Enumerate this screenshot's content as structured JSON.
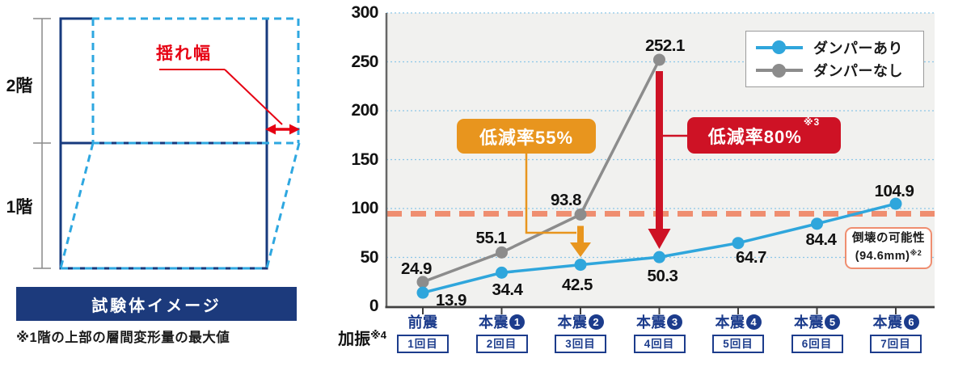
{
  "diagram": {
    "floor2_label": "2階",
    "floor1_label": "1階",
    "sway_label": "揺れ幅",
    "caption": "試験体イメージ",
    "note": "※1階の上部の層間変形量の最大値",
    "colors": {
      "solid_navy": "#173a7d",
      "dashed_blue": "#2ea7e0",
      "red": "#e60012",
      "banner_navy": "#1c3a7c",
      "measure_gray": "#8a8a8a"
    }
  },
  "chart_data": {
    "type": "line",
    "x_categories": [
      {
        "label": "前震",
        "num": ""
      },
      {
        "label": "本震",
        "num": "1"
      },
      {
        "label": "本震",
        "num": "2"
      },
      {
        "label": "本震",
        "num": "3"
      },
      {
        "label": "本震",
        "num": "4"
      },
      {
        "label": "本震",
        "num": "5"
      },
      {
        "label": "本震",
        "num": "6"
      }
    ],
    "x_sub_labels": [
      "1回目",
      "2回目",
      "3回目",
      "4回目",
      "5回目",
      "6回目",
      "7回目"
    ],
    "series": [
      {
        "name": "ダンパーあり",
        "color": "#2fa6dc",
        "values": [
          13.9,
          34.4,
          42.5,
          50.3,
          64.7,
          84.4,
          104.9
        ]
      },
      {
        "name": "ダンパーなし",
        "color": "#8c8c8c",
        "values": [
          24.9,
          55.1,
          93.8,
          252.1,
          null,
          null,
          null
        ]
      }
    ],
    "ylim": [
      0,
      300
    ],
    "yticks": [
      0,
      50,
      100,
      150,
      200,
      250,
      300
    ],
    "grid": true,
    "legend_position": "top-right",
    "threshold": {
      "value": 94.6,
      "color": "#ef8e70",
      "label_line1": "倒壊の可能性",
      "label_line2": "(94.6mm)",
      "label_sup": "※2"
    },
    "annotations": [
      {
        "text": "低減率55%",
        "sup": "",
        "color": "#e8951e",
        "category_index": 2
      },
      {
        "text": "低減率80%",
        "sup": "※3",
        "color": "#ce1225",
        "category_index": 3
      }
    ],
    "x_axis_title": "加振",
    "x_axis_title_sup": "※4",
    "axis_color": "#404040",
    "grid_color": "#8cc6e8",
    "plot_bg": "#f1f1ef",
    "navy": "#1c3c8c"
  }
}
